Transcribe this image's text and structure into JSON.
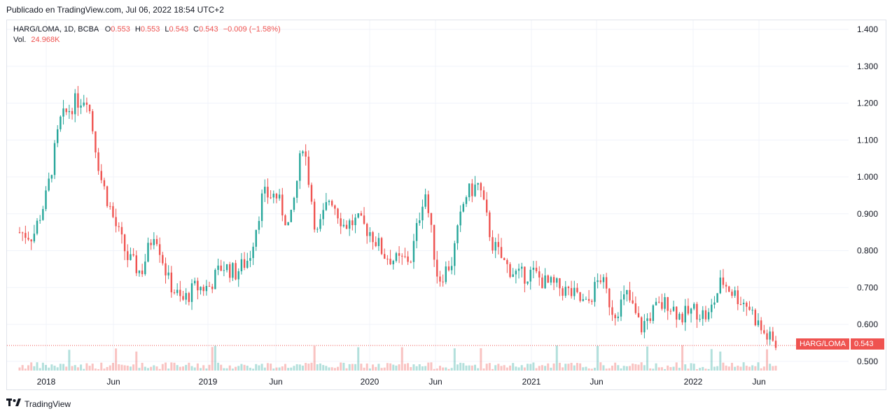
{
  "header": {
    "published": "Publicado en TradingView.com, Jul 06, 2022 18:54 UTC+2"
  },
  "legend": {
    "symbol": "HARG/LOMA, 1D, BCBA",
    "o_label": "O",
    "o_value": "0.553",
    "h_label": "H",
    "h_value": "0.553",
    "l_label": "L",
    "l_value": "0.543",
    "c_label": "C",
    "c_value": "0.543",
    "change": "−0.009 (−1.58%)",
    "vol_label": "Vol.",
    "vol_value": "24.968K"
  },
  "price_tag": {
    "symbol": "HARG/LOMA",
    "value": "0.543"
  },
  "footer": {
    "brand": "TradingView"
  },
  "colors": {
    "up": "#26a69a",
    "down": "#ef5350",
    "grid": "#f0f3fa",
    "axis_text": "#131722"
  },
  "chart_data": {
    "type": "candlestick",
    "y_ticks": [
      "1.400",
      "1.300",
      "1.200",
      "1.100",
      "1.000",
      "0.900",
      "0.800",
      "0.700",
      "0.600",
      "0.500"
    ],
    "ylim": [
      0.475,
      1.4
    ],
    "x_ticks": [
      "2018",
      "Jun",
      "2019",
      "Jun",
      "2020",
      "Jun",
      "2021",
      "Jun",
      "2022",
      "Jun"
    ],
    "last_close": 0.543,
    "series": [
      {
        "name": "HARG/LOMA",
        "x": [
          "2017-11",
          "2017-12",
          "2018-01",
          "2018-02",
          "2018-03",
          "2018-04",
          "2018-05",
          "2018-06",
          "2018-07",
          "2018-08",
          "2018-09",
          "2018-10",
          "2018-11",
          "2018-12",
          "2019-01",
          "2019-02",
          "2019-03",
          "2019-04",
          "2019-05",
          "2019-06",
          "2019-07",
          "2019-08",
          "2019-09",
          "2019-10",
          "2019-11",
          "2019-12",
          "2020-01",
          "2020-02",
          "2020-03",
          "2020-04",
          "2020-05",
          "2020-06",
          "2020-07",
          "2020-08",
          "2020-09",
          "2020-10",
          "2020-11",
          "2020-12",
          "2021-01",
          "2021-02",
          "2021-03",
          "2021-04",
          "2021-05",
          "2021-06",
          "2021-07",
          "2021-08",
          "2021-09",
          "2021-10",
          "2021-11",
          "2021-12",
          "2022-01",
          "2022-02",
          "2022-03",
          "2022-04",
          "2022-05",
          "2022-06",
          "2022-07"
        ],
        "close": [
          0.85,
          0.84,
          0.95,
          1.15,
          1.2,
          1.22,
          1.0,
          0.88,
          0.78,
          0.74,
          0.86,
          0.72,
          0.66,
          0.7,
          0.7,
          0.76,
          0.74,
          0.78,
          0.95,
          0.95,
          0.86,
          1.1,
          0.84,
          0.95,
          0.87,
          0.88,
          0.85,
          0.79,
          0.77,
          0.78,
          0.97,
          0.72,
          0.77,
          0.95,
          0.98,
          0.82,
          0.76,
          0.73,
          0.74,
          0.71,
          0.7,
          0.68,
          0.65,
          0.73,
          0.63,
          0.68,
          0.59,
          0.64,
          0.66,
          0.62,
          0.64,
          0.62,
          0.72,
          0.68,
          0.65,
          0.58,
          0.543
        ]
      }
    ]
  }
}
